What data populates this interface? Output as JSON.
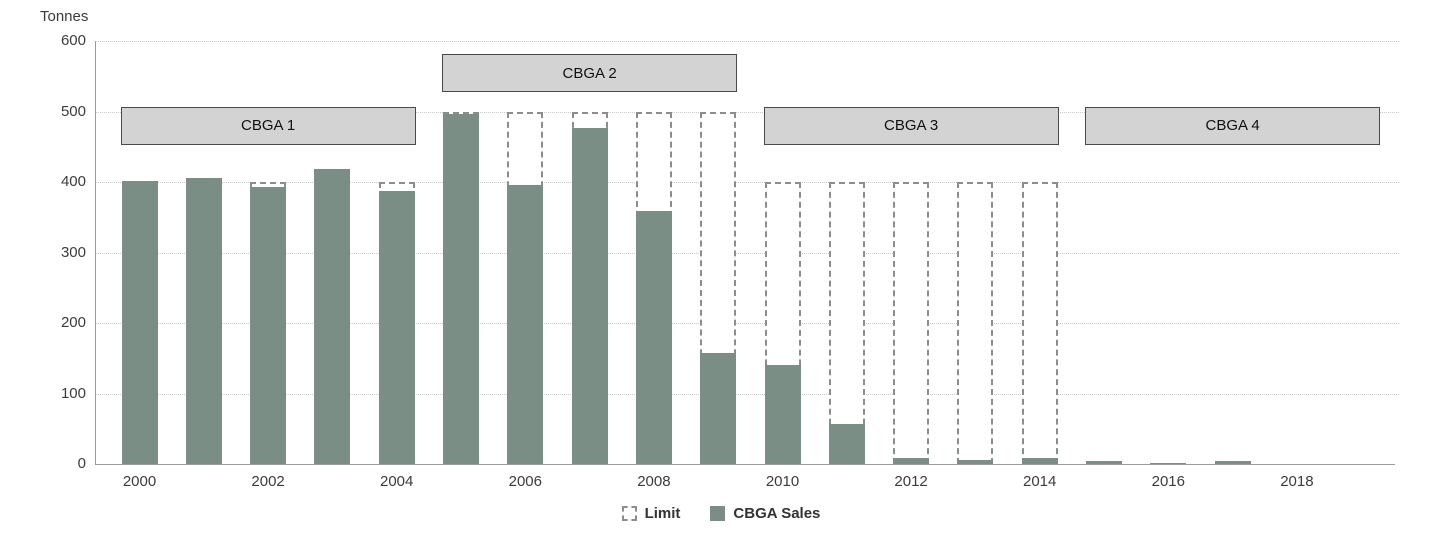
{
  "chart_data": {
    "type": "bar",
    "title": "",
    "ylabel": "Tonnes",
    "ylim": [
      0,
      600
    ],
    "yticks": [
      0,
      100,
      200,
      300,
      400,
      500,
      600
    ],
    "x": [
      2000,
      2001,
      2002,
      2003,
      2004,
      2005,
      2006,
      2007,
      2008,
      2009,
      2010,
      2011,
      2012,
      2013,
      2014,
      2015,
      2016,
      2017,
      2018,
      2019
    ],
    "x_ticks": [
      2000,
      2002,
      2004,
      2006,
      2008,
      2010,
      2012,
      2014,
      2016,
      2018
    ],
    "grid": "horizontal-dotted",
    "legend_position": "bottom-center",
    "series": [
      {
        "name": "Limit",
        "style": "dashed-outline-bar",
        "values": [
          400,
          400,
          400,
          400,
          400,
          500,
          500,
          500,
          500,
          500,
          400,
          400,
          400,
          400,
          400,
          null,
          null,
          null,
          null,
          null
        ]
      },
      {
        "name": "CBGA Sales",
        "style": "solid-bar",
        "values": [
          402,
          405,
          393,
          418,
          387,
          497,
          396,
          476,
          359,
          157,
          140,
          57,
          8,
          5,
          8,
          4,
          2,
          4,
          0,
          null
        ]
      }
    ],
    "annotations": [
      {
        "label": "CBGA 1",
        "x_start": 2000,
        "x_end": 2004,
        "y_center": 480
      },
      {
        "label": "CBGA 2",
        "x_start": 2005,
        "x_end": 2009,
        "y_center": 554
      },
      {
        "label": "CBGA 3",
        "x_start": 2010,
        "x_end": 2014,
        "y_center": 480
      },
      {
        "label": "CBGA 4",
        "x_start": 2015,
        "x_end": 2019,
        "y_center": 480
      }
    ],
    "colors": {
      "sales_fill": "#7b8e85",
      "limit_stroke": "#8a8f8c",
      "annotation_fill": "#d3d3d3",
      "annotation_border": "#4a4a4a",
      "grid": "#c9c9c9",
      "axis": "#9b9b9b",
      "text": "#3c3c3c"
    }
  },
  "legend": {
    "items": [
      {
        "label": "Limit"
      },
      {
        "label": "CBGA Sales"
      }
    ]
  }
}
